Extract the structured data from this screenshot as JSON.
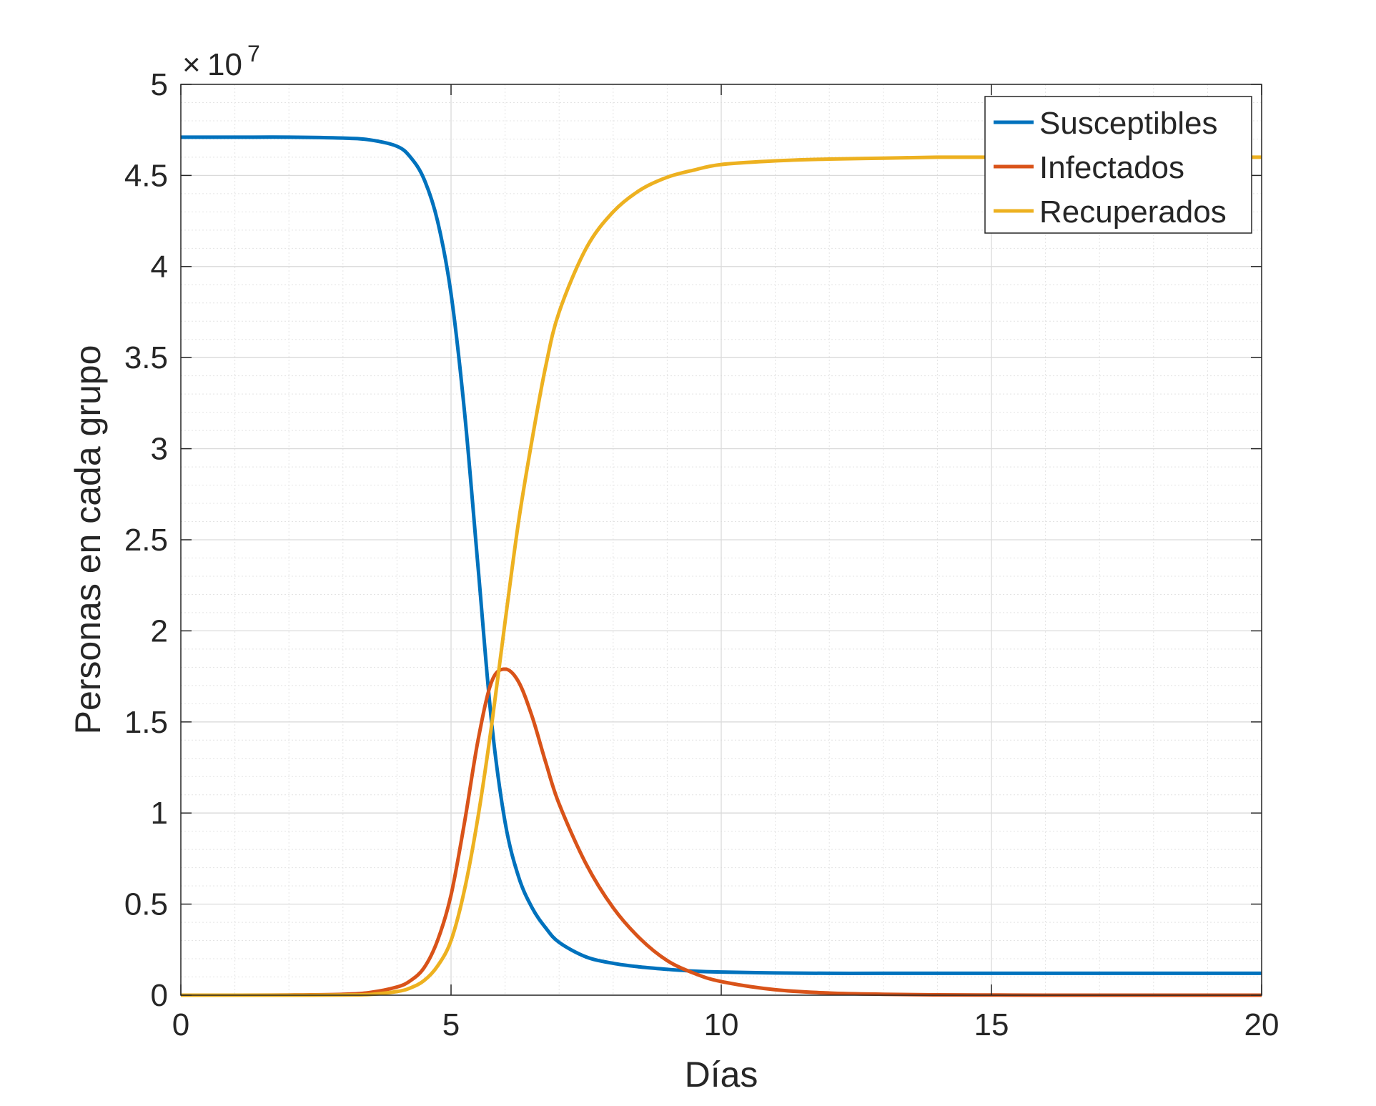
{
  "chart_data": {
    "type": "line",
    "xlabel": "Días",
    "ylabel": "Personas en cada grupo",
    "exponent_label": "10",
    "exponent_power": "7",
    "exponent_prefix": "×",
    "xlim": [
      0,
      20
    ],
    "ylim": [
      0,
      5
    ],
    "y_scale_factor": 10000000,
    "xticks": [
      0,
      5,
      10,
      15,
      20
    ],
    "xtick_labels": [
      "0",
      "5",
      "10",
      "15",
      "20"
    ],
    "yticks": [
      0,
      0.5,
      1,
      1.5,
      2,
      2.5,
      3,
      3.5,
      4,
      4.5,
      5
    ],
    "ytick_labels": [
      "0",
      "0.5",
      "1",
      "1.5",
      "2",
      "2.5",
      "3",
      "3.5",
      "4",
      "4.5",
      "5"
    ],
    "grid": true,
    "minor_grid": true,
    "legend_position": "top-right",
    "x": [
      0,
      1,
      2,
      3,
      3.5,
      4,
      4.25,
      4.5,
      4.75,
      5,
      5.25,
      5.5,
      5.75,
      6,
      6.25,
      6.5,
      6.75,
      7,
      7.5,
      8,
      8.5,
      9,
      9.5,
      10,
      11,
      12,
      13,
      14,
      15,
      16,
      17,
      18,
      19,
      20
    ],
    "series": [
      {
        "name": "Susceptibles",
        "color": "#0072BD",
        "values": [
          4.71,
          4.71,
          4.71,
          4.705,
          4.695,
          4.66,
          4.6,
          4.48,
          4.25,
          3.85,
          3.2,
          2.35,
          1.5,
          0.95,
          0.65,
          0.48,
          0.37,
          0.29,
          0.21,
          0.175,
          0.155,
          0.142,
          0.132,
          0.127,
          0.122,
          0.12,
          0.12,
          0.12,
          0.12,
          0.12,
          0.12,
          0.12,
          0.12,
          0.12
        ]
      },
      {
        "name": "Infectados",
        "color": "#D95319",
        "values": [
          0,
          0,
          0.001,
          0.005,
          0.015,
          0.045,
          0.08,
          0.15,
          0.3,
          0.55,
          0.95,
          1.4,
          1.72,
          1.79,
          1.72,
          1.53,
          1.28,
          1.05,
          0.72,
          0.48,
          0.31,
          0.19,
          0.12,
          0.075,
          0.03,
          0.012,
          0.005,
          0.002,
          0.001,
          0,
          0,
          0,
          0,
          0
        ]
      },
      {
        "name": "Recuperados",
        "color": "#EDB120",
        "values": [
          0,
          0,
          0,
          0.001,
          0.004,
          0.02,
          0.04,
          0.08,
          0.16,
          0.3,
          0.58,
          0.98,
          1.48,
          2.05,
          2.6,
          3.05,
          3.45,
          3.75,
          4.1,
          4.3,
          4.42,
          4.49,
          4.53,
          4.56,
          4.58,
          4.59,
          4.595,
          4.6,
          4.6,
          4.6,
          4.6,
          4.6,
          4.6,
          4.6
        ]
      }
    ]
  }
}
